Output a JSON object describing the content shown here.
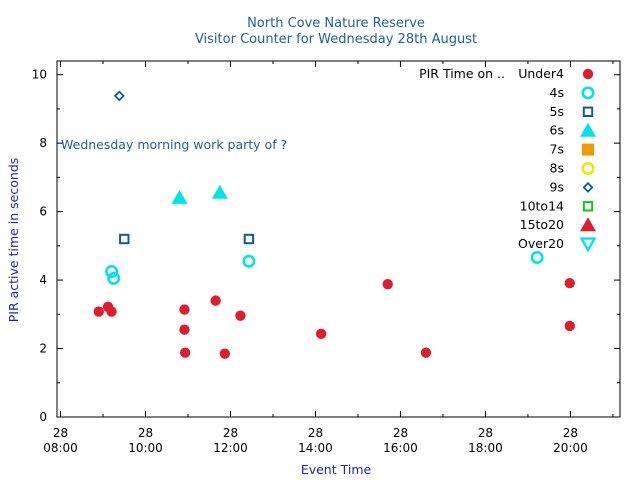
{
  "chart_data": {
    "type": "scatter",
    "title": "North Cove Nature Reserve",
    "subtitle": "Visitor Counter for Wednesday 28th August",
    "xlabel": "Event Time",
    "ylabel": "PIR active time in seconds",
    "xlim": [
      "07:55",
      "21:10"
    ],
    "ylim": [
      0,
      10.4
    ],
    "x_ticks": [
      {
        "time": "08:00",
        "line1": "28",
        "line2": "08:00"
      },
      {
        "time": "10:00",
        "line1": "28",
        "line2": "10:00"
      },
      {
        "time": "12:00",
        "line1": "28",
        "line2": "12:00"
      },
      {
        "time": "14:00",
        "line1": "28",
        "line2": "14:00"
      },
      {
        "time": "16:00",
        "line1": "28",
        "line2": "16:00"
      },
      {
        "time": "18:00",
        "line1": "28",
        "line2": "18:00"
      },
      {
        "time": "20:00",
        "line1": "28",
        "line2": "20:00"
      }
    ],
    "x_minor_ticks": [
      "09:00",
      "11:00",
      "13:00",
      "15:00",
      "17:00",
      "19:00",
      "21:00"
    ],
    "y_ticks": [
      0,
      2,
      4,
      6,
      8,
      10
    ],
    "y_tick_labels": [
      "0",
      "2",
      "4",
      "6",
      "8",
      "10"
    ],
    "grid": false,
    "legend_title": "PIR Time on ..",
    "legend_position": "top-right",
    "annotation": {
      "text": "Wednesday morning work party of ?",
      "x": "08:00",
      "y": 7.9
    },
    "series": [
      {
        "name": "Under4",
        "marker": "filled-circle",
        "color": "#dd1e2f",
        "points": [
          {
            "x": "08:54",
            "y": 3.08
          },
          {
            "x": "09:07",
            "y": 3.22
          },
          {
            "x": "09:12",
            "y": 3.08
          },
          {
            "x": "10:55",
            "y": 3.14
          },
          {
            "x": "10:55",
            "y": 2.55
          },
          {
            "x": "10:56",
            "y": 1.88
          },
          {
            "x": "11:39",
            "y": 3.4
          },
          {
            "x": "11:52",
            "y": 1.85
          },
          {
            "x": "12:14",
            "y": 2.96
          },
          {
            "x": "14:08",
            "y": 2.43
          },
          {
            "x": "15:42",
            "y": 3.88
          },
          {
            "x": "16:36",
            "y": 1.88
          },
          {
            "x": "19:59",
            "y": 3.91
          },
          {
            "x": "19:59",
            "y": 2.66
          }
        ]
      },
      {
        "name": "4s",
        "marker": "open-circle",
        "color": "#00e4e8",
        "points": [
          {
            "x": "09:12",
            "y": 4.25
          },
          {
            "x": "09:15",
            "y": 4.05
          },
          {
            "x": "12:26",
            "y": 4.55
          },
          {
            "x": "19:13",
            "y": 4.66
          }
        ]
      },
      {
        "name": "5s",
        "marker": "open-square",
        "color": "#0d5a9c",
        "points": [
          {
            "x": "09:30",
            "y": 5.2
          },
          {
            "x": "12:26",
            "y": 5.2
          }
        ]
      },
      {
        "name": "6s",
        "marker": "filled-triangle-up",
        "color": "#00e4e8",
        "points": [
          {
            "x": "10:48",
            "y": 6.4
          },
          {
            "x": "11:45",
            "y": 6.55
          }
        ]
      },
      {
        "name": "7s",
        "marker": "filled-square",
        "color": "#ee9a00",
        "points": []
      },
      {
        "name": "8s",
        "marker": "open-circle",
        "color": "#f7e400",
        "points": []
      },
      {
        "name": "9s",
        "marker": "open-diamond",
        "color": "#0d5a9c",
        "points": [
          {
            "x": "09:23",
            "y": 9.38
          }
        ]
      },
      {
        "name": "10to14",
        "marker": "open-square",
        "color": "#11c811",
        "points": []
      },
      {
        "name": "15to20",
        "marker": "filled-triangle-up",
        "color": "#dd1e2f",
        "points": []
      },
      {
        "name": "Over20",
        "marker": "open-triangle-down",
        "color": "#00e4e8",
        "points": []
      }
    ]
  }
}
